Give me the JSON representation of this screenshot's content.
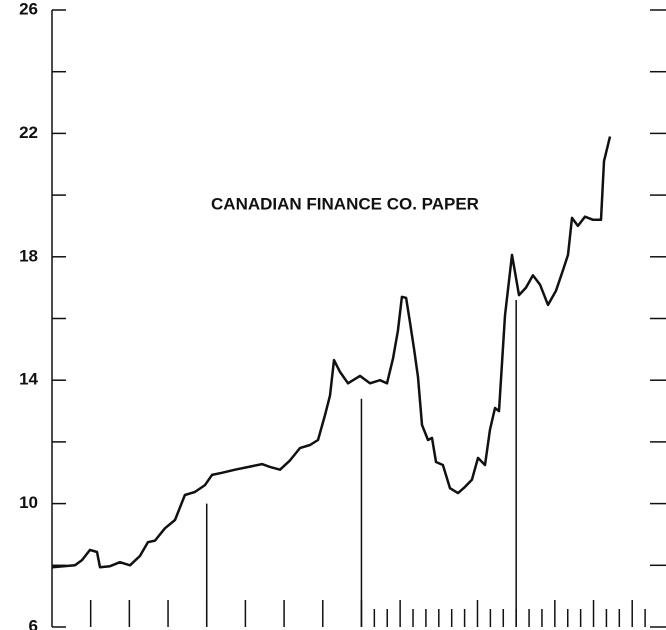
{
  "chart_data": {
    "type": "line",
    "title": "CANADIAN FINANCE CO. PAPER",
    "color": "#111111",
    "xlim": [
      -3,
      44
    ],
    "ylim": [
      6,
      26
    ],
    "yticks": [
      6,
      10,
      14,
      18,
      22,
      26
    ],
    "yminor": [
      8,
      12,
      16,
      20,
      24
    ],
    "xticks": [
      0,
      3,
      6,
      9,
      12,
      15,
      18,
      21,
      24,
      30,
      36,
      39,
      42
    ],
    "xminor": [
      22,
      23,
      25,
      26,
      27,
      28,
      29,
      31,
      32,
      33,
      34,
      35,
      37,
      38,
      40,
      41,
      43
    ],
    "vlines": [
      {
        "x": 9,
        "top": 10
      },
      {
        "x": 21,
        "top": 13.4
      },
      {
        "x": 33,
        "top": 16.6
      }
    ],
    "x": [
      -3,
      -1.22,
      -0.67,
      -0.05,
      0.49,
      0.72,
      1.5,
      2.27,
      3.05,
      3.82,
      4.44,
      4.99,
      5.76,
      6.54,
      7.31,
      8.09,
      8.87,
      9.41,
      10.18,
      11.19,
      12.36,
      13.29,
      13.91,
      14.68,
      15.46,
      16.23,
      17.01,
      17.63,
      18.17,
      18.56,
      18.87,
      19.34,
      19.96,
      20.89,
      21.66,
      22.44,
      22.98,
      23.45,
      23.83,
      24.14,
      24.46,
      24.77,
      25.08,
      25.39,
      25.7,
      26.16,
      26.47,
      26.78,
      27.32,
      27.87,
      28.49,
      29.03,
      29.57,
      30.04,
      30.58,
      30.97,
      31.36,
      31.67,
      32.13,
      32.68,
      33.22,
      33.76,
      34.3,
      34.85,
      35.47,
      36.09,
      36.63,
      37.02,
      37.33,
      37.79,
      38.34,
      38.96,
      39.58,
      39.81,
      40.28
    ],
    "values": [
      7.94,
      8.0,
      8.17,
      8.5,
      8.43,
      7.94,
      7.97,
      8.1,
      8.0,
      8.3,
      8.75,
      8.8,
      9.2,
      9.47,
      10.28,
      10.38,
      10.6,
      10.93,
      11.0,
      11.1,
      11.2,
      11.28,
      11.19,
      11.1,
      11.4,
      11.8,
      11.9,
      12.06,
      12.87,
      13.5,
      14.65,
      14.27,
      13.9,
      14.14,
      13.9,
      14.0,
      13.9,
      14.7,
      15.6,
      16.7,
      16.67,
      15.85,
      15.0,
      14.1,
      12.55,
      12.06,
      12.13,
      11.35,
      11.25,
      10.5,
      10.34,
      10.54,
      10.77,
      11.48,
      11.25,
      12.4,
      13.1,
      13.0,
      16.1,
      18.06,
      16.76,
      17.0,
      17.4,
      17.1,
      16.44,
      16.9,
      17.57,
      18.06,
      19.26,
      19.0,
      19.3,
      19.2,
      19.2,
      21.1,
      21.9
    ]
  }
}
